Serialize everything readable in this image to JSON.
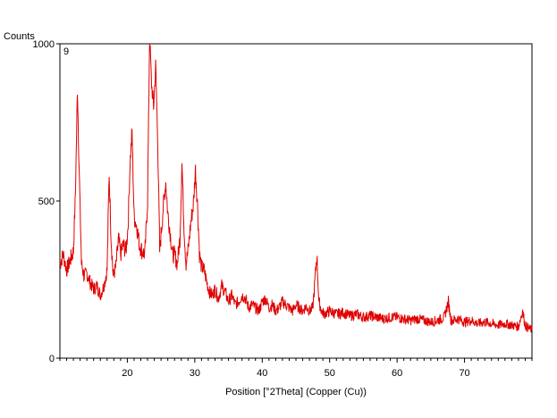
{
  "chart_data": {
    "type": "line",
    "title": "",
    "ylabel": "Counts",
    "xlabel": "Position [°2Theta] (Copper (Cu))",
    "panel_label": "9",
    "xlim": [
      10,
      80
    ],
    "ylim": [
      0,
      1000
    ],
    "x_ticks": [
      20,
      30,
      40,
      50,
      60,
      70
    ],
    "y_ticks": [
      0,
      500,
      1000
    ],
    "grid": false,
    "legend": "none",
    "line_color": "#e00000",
    "series": [
      {
        "x": [
          10.0,
          10.5,
          11.0,
          11.5,
          12.0,
          12.3,
          12.6,
          12.9,
          13.2,
          13.6,
          14.0,
          14.5,
          15.0,
          15.5,
          16.0,
          16.5,
          17.0,
          17.3,
          17.6,
          17.9,
          18.3,
          18.7,
          19.0,
          19.4,
          19.8,
          20.1,
          20.4,
          20.7,
          21.0,
          21.4,
          21.8,
          22.2,
          22.6,
          23.0,
          23.3,
          23.6,
          23.9,
          24.2,
          24.5,
          24.8,
          25.1,
          25.4,
          25.7,
          26.0,
          26.3,
          26.7,
          27.0,
          27.4,
          27.8,
          28.1,
          28.4,
          28.7,
          29.0,
          29.4,
          29.8,
          30.1,
          30.4,
          30.7,
          31.0,
          31.4,
          31.8,
          32.2,
          32.6,
          33.0,
          33.5,
          34.0,
          34.5,
          35.0,
          35.5,
          36.0,
          36.5,
          37.0,
          37.5,
          38.0,
          38.5,
          39.0,
          39.5,
          40.0,
          40.5,
          41.0,
          41.5,
          42.0,
          42.5,
          43.0,
          43.5,
          44.0,
          44.5,
          45.0,
          45.5,
          46.0,
          46.5,
          47.0,
          47.5,
          47.8,
          48.1,
          48.4,
          48.8,
          49.2,
          49.6,
          50.0,
          51.0,
          52.0,
          53.0,
          54.0,
          55.0,
          56.0,
          57.0,
          58.0,
          59.0,
          60.0,
          61.0,
          62.0,
          63.0,
          64.0,
          65.0,
          66.0,
          67.0,
          67.6,
          68.0,
          69.0,
          70.0,
          71.0,
          72.0,
          73.0,
          74.0,
          75.0,
          76.0,
          77.0,
          78.0,
          78.6,
          79.0,
          79.5,
          80.0
        ],
        "y": [
          300,
          330,
          280,
          310,
          340,
          520,
          860,
          560,
          300,
          260,
          270,
          240,
          220,
          230,
          200,
          230,
          280,
          590,
          380,
          260,
          290,
          380,
          330,
          360,
          340,
          420,
          620,
          720,
          450,
          420,
          360,
          340,
          330,
          500,
          1020,
          870,
          800,
          930,
          700,
          340,
          420,
          500,
          560,
          460,
          410,
          330,
          330,
          300,
          380,
          620,
          420,
          300,
          340,
          430,
          490,
          600,
          490,
          330,
          290,
          280,
          240,
          210,
          200,
          220,
          190,
          230,
          210,
          180,
          200,
          170,
          180,
          200,
          190,
          160,
          170,
          160,
          150,
          180,
          190,
          160,
          170,
          150,
          160,
          180,
          170,
          160,
          150,
          170,
          160,
          150,
          165,
          150,
          160,
          240,
          330,
          180,
          150,
          140,
          145,
          150,
          140,
          145,
          135,
          140,
          130,
          135,
          130,
          125,
          130,
          130,
          125,
          120,
          125,
          120,
          115,
          120,
          130,
          180,
          120,
          125,
          115,
          120,
          110,
          115,
          110,
          105,
          110,
          105,
          100,
          150,
          105,
          95,
          90
        ]
      }
    ]
  }
}
